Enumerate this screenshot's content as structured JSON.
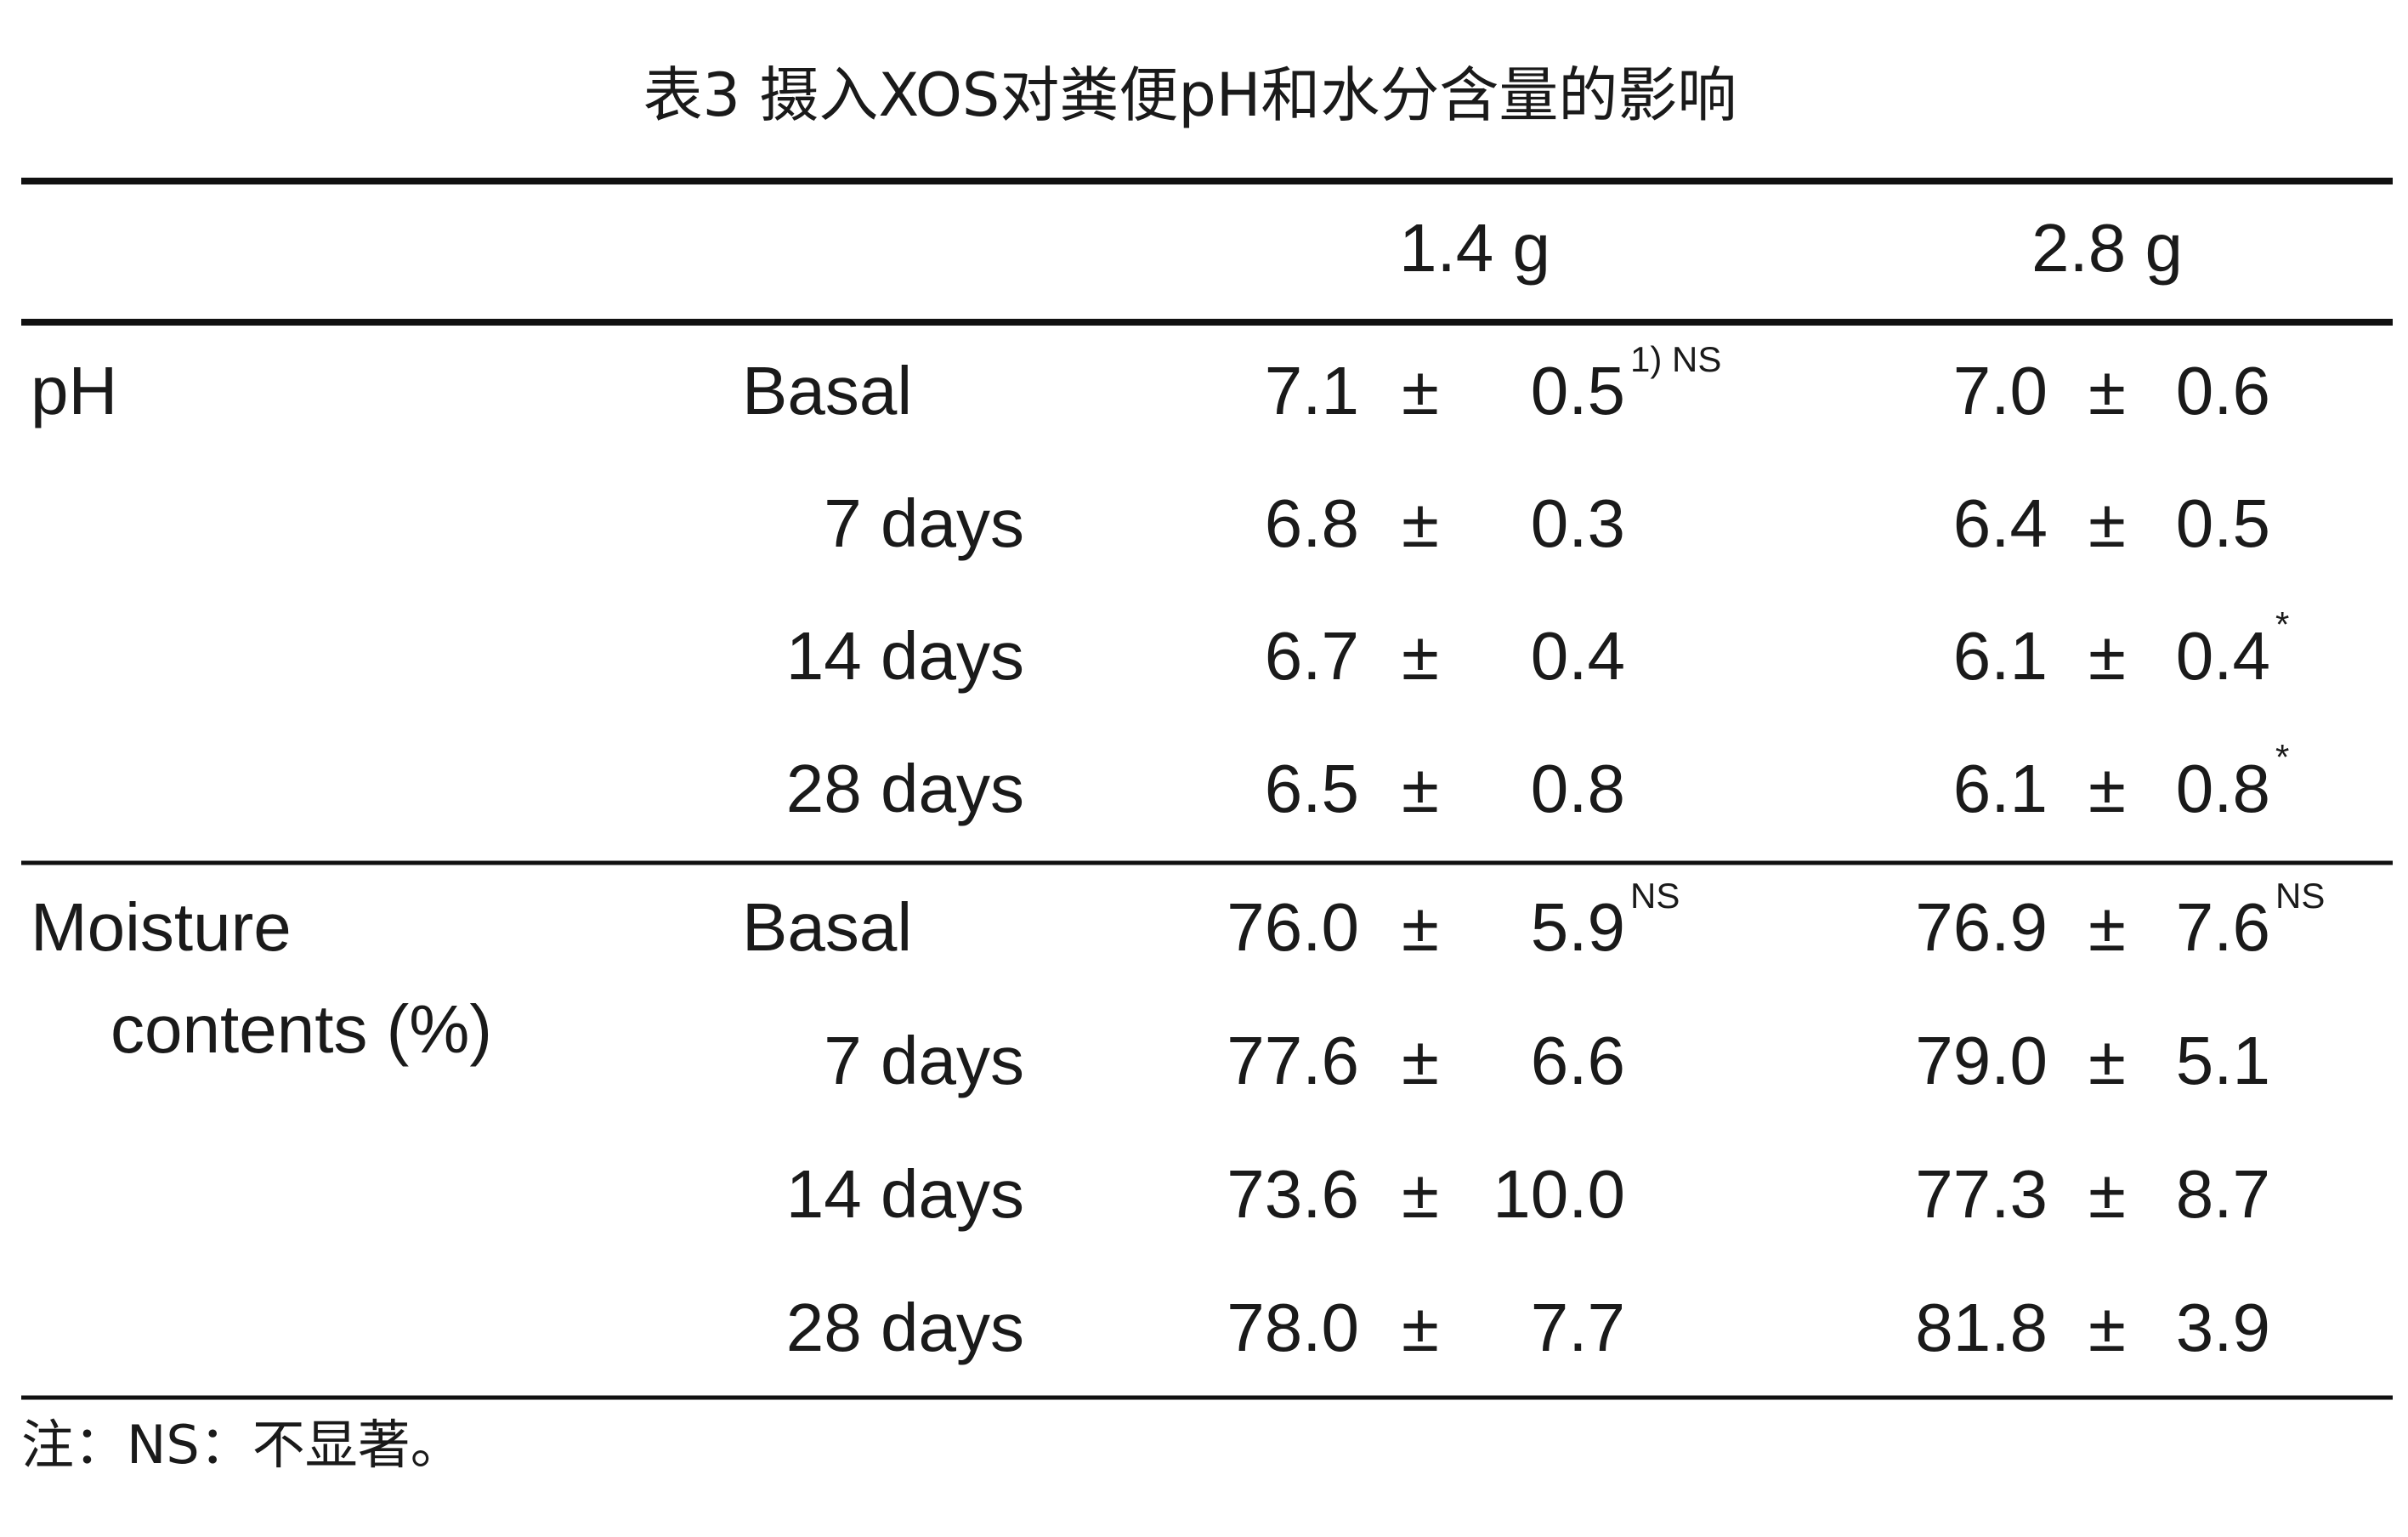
{
  "title": "表3 摄入XOS对粪便pH和水分含量的影响",
  "table": {
    "header": [
      "1.4 g",
      "2.8 g"
    ],
    "groups": [
      {
        "label": [
          "pH"
        ],
        "rows": [
          {
            "label": "Basal",
            "cells": [
              {
                "mean": "7.1",
                "pm": "±",
                "sd": "0.5",
                "note": "1) NS"
              },
              {
                "mean": "7.0",
                "pm": "±",
                "sd": "0.6"
              }
            ]
          },
          {
            "label": "7 days",
            "cells": [
              {
                "mean": "6.8",
                "pm": "±",
                "sd": "0.3"
              },
              {
                "mean": "6.4",
                "pm": "±",
                "sd": "0.5"
              }
            ]
          },
          {
            "label": "14 days",
            "cells": [
              {
                "mean": "6.7",
                "pm": "±",
                "sd": "0.4"
              },
              {
                "mean": "6.1",
                "pm": "±",
                "sd": "0.4",
                "note": "*"
              }
            ]
          },
          {
            "label": "28 days",
            "cells": [
              {
                "mean": "6.5",
                "pm": "±",
                "sd": "0.8"
              },
              {
                "mean": "6.1",
                "pm": "±",
                "sd": "0.8",
                "note": "*"
              }
            ]
          }
        ]
      },
      {
        "label": [
          "Moisture",
          "contents (%)"
        ],
        "rows": [
          {
            "label": "Basal",
            "cells": [
              {
                "mean": "76.0",
                "pm": "±",
                "sd": "5.9",
                "note": "NS"
              },
              {
                "mean": "76.9",
                "pm": "±",
                "sd": "7.6",
                "note": "NS"
              }
            ]
          },
          {
            "label": "7 days",
            "cells": [
              {
                "mean": "77.6",
                "pm": "±",
                "sd": "6.6"
              },
              {
                "mean": "79.0",
                "pm": "±",
                "sd": "5.1"
              }
            ]
          },
          {
            "label": "14 days",
            "cells": [
              {
                "mean": "73.6",
                "pm": "±",
                "sd": "10.0"
              },
              {
                "mean": "77.3",
                "pm": "±",
                "sd": "8.7"
              }
            ]
          },
          {
            "label": "28 days",
            "cells": [
              {
                "mean": "78.0",
                "pm": "±",
                "sd": "7.7"
              },
              {
                "mean": "81.8",
                "pm": "±",
                "sd": "3.9"
              }
            ]
          }
        ]
      }
    ]
  },
  "footnote": "注：NS：不显著。"
}
